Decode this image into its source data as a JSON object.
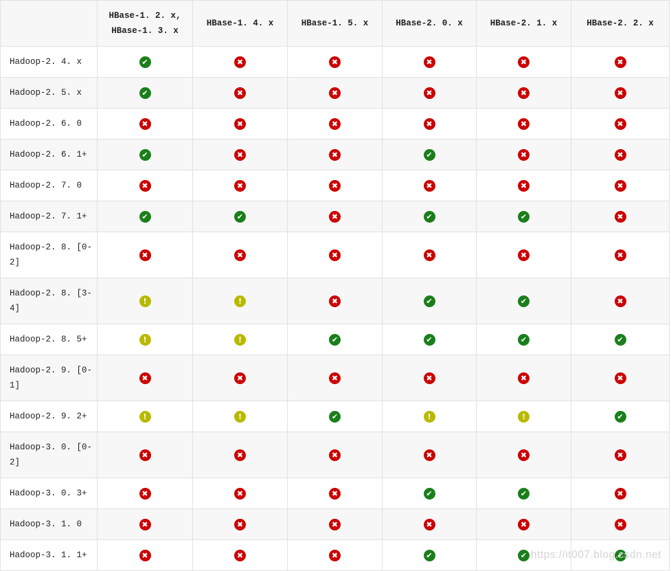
{
  "watermark": "https://it007.blog.csdn.net",
  "colors": {
    "stripe": "#f7f7f7",
    "border": "#e1e1e1",
    "green": "#1a7f1a",
    "red": "#cc0000",
    "yellow": "#b9b900",
    "text": "#222222",
    "watermark": "#d4d4d4"
  },
  "icons": {
    "check": "✔",
    "cross": "✖",
    "warning": "!"
  },
  "icon_meanings": {
    "check": "supported",
    "cross": "not-supported",
    "warning": "not-tested"
  },
  "table": {
    "corner_label": "",
    "columns": [
      "HBase-1. 2. x,\nHBase-1. 3. x",
      "HBase-1. 4. x",
      "HBase-1. 5. x",
      "HBase-2. 0. x",
      "HBase-2. 1. x",
      "HBase-2. 2. x"
    ],
    "rows": [
      {
        "label": "Hadoop-2. 4. x",
        "cells": [
          "check",
          "cross",
          "cross",
          "cross",
          "cross",
          "cross"
        ]
      },
      {
        "label": "Hadoop-2. 5. x",
        "cells": [
          "check",
          "cross",
          "cross",
          "cross",
          "cross",
          "cross"
        ]
      },
      {
        "label": "Hadoop-2. 6. 0",
        "cells": [
          "cross",
          "cross",
          "cross",
          "cross",
          "cross",
          "cross"
        ]
      },
      {
        "label": "Hadoop-2. 6. 1+",
        "cells": [
          "check",
          "cross",
          "cross",
          "check",
          "cross",
          "cross"
        ]
      },
      {
        "label": "Hadoop-2. 7. 0",
        "cells": [
          "cross",
          "cross",
          "cross",
          "cross",
          "cross",
          "cross"
        ]
      },
      {
        "label": "Hadoop-2. 7. 1+",
        "cells": [
          "check",
          "check",
          "cross",
          "check",
          "check",
          "cross"
        ]
      },
      {
        "label": "Hadoop-2. 8. [0-\n2]",
        "cells": [
          "cross",
          "cross",
          "cross",
          "cross",
          "cross",
          "cross"
        ]
      },
      {
        "label": "Hadoop-2. 8. [3-\n4]",
        "cells": [
          "warning",
          "warning",
          "cross",
          "check",
          "check",
          "cross"
        ]
      },
      {
        "label": "Hadoop-2. 8. 5+",
        "cells": [
          "warning",
          "warning",
          "check",
          "check",
          "check",
          "check"
        ]
      },
      {
        "label": "Hadoop-2. 9. [0-\n1]",
        "cells": [
          "cross",
          "cross",
          "cross",
          "cross",
          "cross",
          "cross"
        ]
      },
      {
        "label": "Hadoop-2. 9. 2+",
        "cells": [
          "warning",
          "warning",
          "check",
          "warning",
          "warning",
          "check"
        ]
      },
      {
        "label": "Hadoop-3. 0. [0-\n2]",
        "cells": [
          "cross",
          "cross",
          "cross",
          "cross",
          "cross",
          "cross"
        ]
      },
      {
        "label": "Hadoop-3. 0. 3+",
        "cells": [
          "cross",
          "cross",
          "cross",
          "check",
          "check",
          "cross"
        ]
      },
      {
        "label": "Hadoop-3. 1. 0",
        "cells": [
          "cross",
          "cross",
          "cross",
          "cross",
          "cross",
          "cross"
        ]
      },
      {
        "label": "Hadoop-3. 1. 1+",
        "cells": [
          "cross",
          "cross",
          "cross",
          "check",
          "check",
          "check"
        ]
      }
    ]
  }
}
